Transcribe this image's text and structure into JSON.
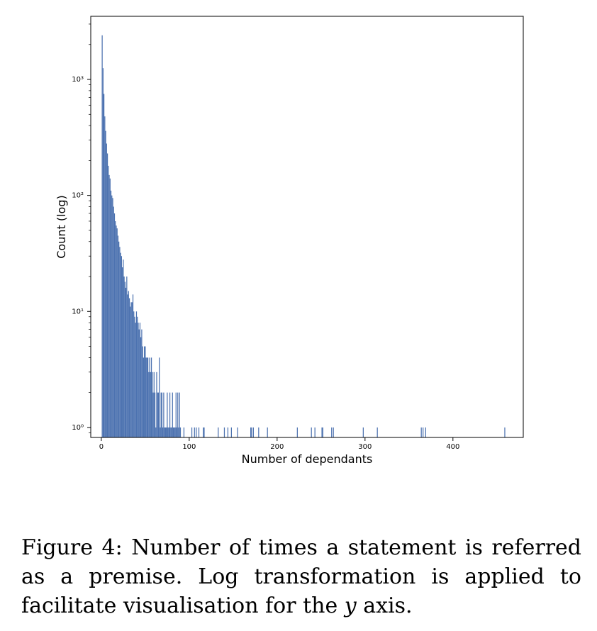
{
  "chart_data": {
    "type": "bar",
    "xlabel": "Number of dependants",
    "ylabel": "Count (log)",
    "yscale": "log",
    "xlim": [
      -12,
      480
    ],
    "ylim": [
      0.82,
      3500
    ],
    "xticks": [
      0,
      100,
      200,
      300,
      400
    ],
    "yticks": [
      {
        "value": 1,
        "label": "10⁰"
      },
      {
        "value": 10,
        "label": "10¹"
      },
      {
        "value": 100,
        "label": "10²"
      },
      {
        "value": 1000,
        "label": "10³"
      }
    ],
    "bar_color": "#4c72b0",
    "grid": false,
    "bin_width": 1,
    "x": [
      1,
      2,
      3,
      4,
      5,
      6,
      7,
      8,
      9,
      10,
      11,
      12,
      13,
      14,
      15,
      16,
      17,
      18,
      19,
      20,
      21,
      22,
      23,
      24,
      25,
      26,
      27,
      28,
      29,
      30,
      31,
      32,
      33,
      34,
      35,
      36,
      37,
      38,
      39,
      40,
      41,
      42,
      43,
      44,
      45,
      46,
      47,
      48,
      49,
      50,
      51,
      52,
      53,
      54,
      55,
      56,
      57,
      58,
      59,
      60,
      61,
      62,
      63,
      64,
      65,
      66,
      67,
      68,
      69,
      70,
      71,
      72,
      73,
      74,
      75,
      76,
      77,
      78,
      79,
      80,
      81,
      82,
      83,
      84,
      85,
      86,
      87,
      88,
      89,
      90,
      94,
      103,
      106,
      108,
      111,
      116,
      117,
      133,
      140,
      144,
      148,
      155,
      170,
      171,
      173,
      179,
      189,
      223,
      239,
      243,
      251,
      252,
      262,
      264,
      298,
      314,
      364,
      366,
      369,
      459
    ],
    "values": [
      2400,
      1250,
      750,
      480,
      360,
      280,
      230,
      180,
      150,
      140,
      110,
      100,
      95,
      80,
      70,
      60,
      55,
      52,
      45,
      40,
      36,
      32,
      30,
      24,
      28,
      20,
      18,
      16,
      20,
      14,
      15,
      13,
      11,
      12,
      12,
      14,
      10,
      9,
      8,
      10,
      9,
      8,
      7,
      8,
      6,
      7,
      5,
      4,
      5,
      5,
      4,
      4,
      4,
      3,
      4,
      3,
      4,
      3,
      2,
      3,
      2,
      1,
      3,
      2,
      2,
      4,
      1,
      2,
      2,
      1,
      2,
      1,
      1,
      1,
      2,
      1,
      1,
      2,
      1,
      1,
      2,
      1,
      1,
      1,
      2,
      1,
      2,
      1,
      2,
      1,
      1,
      1,
      1,
      1,
      1,
      1,
      1,
      1,
      1,
      1,
      1,
      1,
      1,
      1,
      1,
      1,
      1,
      1,
      1,
      1,
      1,
      1,
      1,
      1,
      1,
      1,
      1,
      1,
      1,
      1
    ]
  },
  "caption": {
    "text_before": "Figure 4: Number of times a statement is referred as a premise. Log transformation is applied to facilitate visualisation for the ",
    "variable": "y",
    "text_after": " axis."
  }
}
